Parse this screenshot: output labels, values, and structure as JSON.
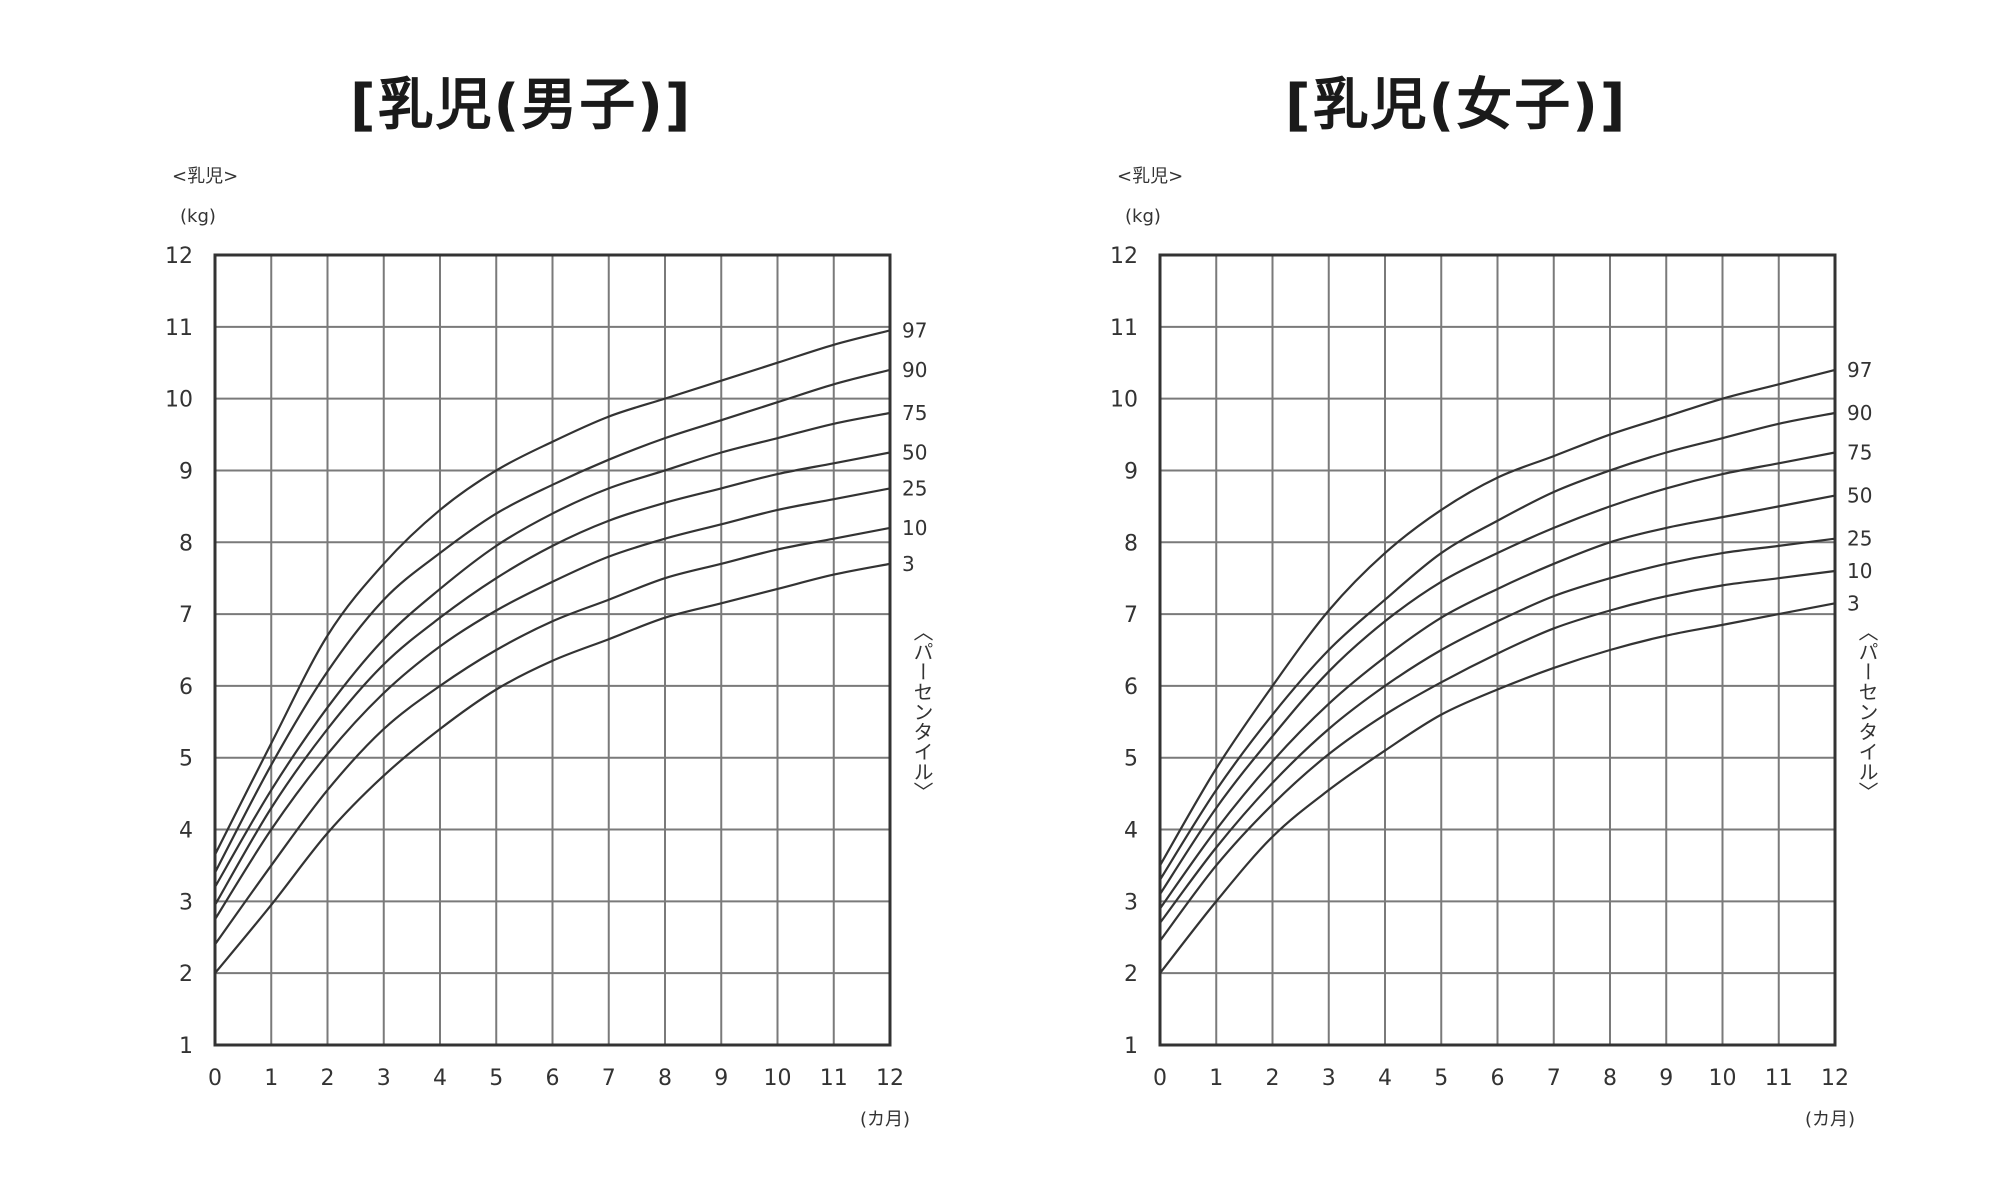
{
  "chart_data": [
    {
      "type": "line",
      "title": "[乳児(男子)]",
      "group_label": "<乳児>",
      "ylabel": "(kg)",
      "xlabel": "(カ月)",
      "legend_label": "〈パーセンタイル〉",
      "xlim": [
        0,
        12
      ],
      "ylim": [
        1,
        12
      ],
      "x_ticks": [
        "0",
        "1",
        "2",
        "3",
        "4",
        "5",
        "6",
        "7",
        "8",
        "9",
        "10",
        "11",
        "12"
      ],
      "y_ticks": [
        "1",
        "2",
        "3",
        "4",
        "5",
        "6",
        "7",
        "8",
        "9",
        "10",
        "11",
        "12"
      ],
      "grid": true,
      "x": [
        0,
        1,
        2,
        3,
        4,
        5,
        6,
        7,
        8,
        9,
        10,
        11,
        12
      ],
      "series": [
        {
          "name": "97",
          "values": [
            3.65,
            5.2,
            6.7,
            7.7,
            8.45,
            9.0,
            9.4,
            9.75,
            10.0,
            10.25,
            10.5,
            10.75,
            10.95
          ]
        },
        {
          "name": "90",
          "values": [
            3.4,
            4.9,
            6.2,
            7.2,
            7.85,
            8.4,
            8.8,
            9.15,
            9.45,
            9.7,
            9.95,
            10.2,
            10.4
          ]
        },
        {
          "name": "75",
          "values": [
            3.2,
            4.55,
            5.7,
            6.65,
            7.35,
            7.95,
            8.4,
            8.75,
            9.0,
            9.25,
            9.45,
            9.65,
            9.8
          ]
        },
        {
          "name": "50",
          "values": [
            2.95,
            4.3,
            5.4,
            6.3,
            6.95,
            7.5,
            7.95,
            8.3,
            8.55,
            8.75,
            8.95,
            9.1,
            9.25
          ]
        },
        {
          "name": "25",
          "values": [
            2.75,
            4.0,
            5.05,
            5.9,
            6.55,
            7.05,
            7.45,
            7.8,
            8.05,
            8.25,
            8.45,
            8.6,
            8.75
          ]
        },
        {
          "name": "10",
          "values": [
            2.4,
            3.5,
            4.55,
            5.4,
            6.0,
            6.5,
            6.9,
            7.2,
            7.5,
            7.7,
            7.9,
            8.05,
            8.2
          ]
        },
        {
          "name": "3",
          "values": [
            2.0,
            2.95,
            3.95,
            4.75,
            5.4,
            5.95,
            6.35,
            6.65,
            6.95,
            7.15,
            7.35,
            7.55,
            7.7
          ]
        }
      ]
    },
    {
      "type": "line",
      "title": "[乳児(女子)]",
      "group_label": "<乳児>",
      "ylabel": "(kg)",
      "xlabel": "(カ月)",
      "legend_label": "〈パーセンタイル〉",
      "xlim": [
        0,
        12
      ],
      "ylim": [
        1,
        12
      ],
      "x_ticks": [
        "0",
        "1",
        "2",
        "3",
        "4",
        "5",
        "6",
        "7",
        "8",
        "9",
        "10",
        "11",
        "12"
      ],
      "y_ticks": [
        "1",
        "2",
        "3",
        "4",
        "5",
        "6",
        "7",
        "8",
        "9",
        "10",
        "11",
        "12"
      ],
      "grid": true,
      "x": [
        0,
        1,
        2,
        3,
        4,
        5,
        6,
        7,
        8,
        9,
        10,
        11,
        12
      ],
      "series": [
        {
          "name": "97",
          "values": [
            3.5,
            4.85,
            6.0,
            7.05,
            7.85,
            8.45,
            8.9,
            9.2,
            9.5,
            9.75,
            10.0,
            10.2,
            10.4
          ]
        },
        {
          "name": "90",
          "values": [
            3.3,
            4.55,
            5.6,
            6.5,
            7.2,
            7.85,
            8.3,
            8.7,
            9.0,
            9.25,
            9.45,
            9.65,
            9.8
          ]
        },
        {
          "name": "75",
          "values": [
            3.1,
            4.3,
            5.3,
            6.2,
            6.9,
            7.45,
            7.85,
            8.2,
            8.5,
            8.75,
            8.95,
            9.1,
            9.25
          ]
        },
        {
          "name": "50",
          "values": [
            2.9,
            4.0,
            4.95,
            5.75,
            6.4,
            6.95,
            7.35,
            7.7,
            8.0,
            8.2,
            8.35,
            8.5,
            8.65
          ]
        },
        {
          "name": "25",
          "values": [
            2.7,
            3.75,
            4.65,
            5.4,
            6.0,
            6.5,
            6.9,
            7.25,
            7.5,
            7.7,
            7.85,
            7.95,
            8.05
          ]
        },
        {
          "name": "10",
          "values": [
            2.45,
            3.5,
            4.35,
            5.05,
            5.6,
            6.05,
            6.45,
            6.8,
            7.05,
            7.25,
            7.4,
            7.5,
            7.6
          ]
        },
        {
          "name": "3",
          "values": [
            2.0,
            3.0,
            3.9,
            4.55,
            5.1,
            5.6,
            5.95,
            6.25,
            6.5,
            6.7,
            6.85,
            7.0,
            7.15
          ]
        }
      ]
    }
  ]
}
